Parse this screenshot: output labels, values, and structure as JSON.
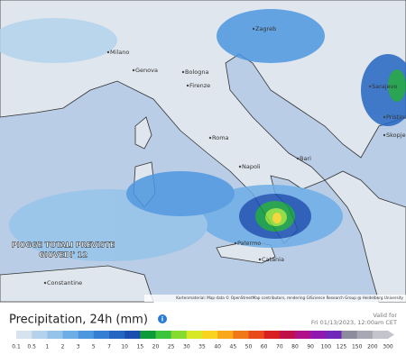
{
  "map": {
    "overlay_title": [
      "PIOGGE TOTALI PREVISTE",
      "GIOVEDI' 12"
    ],
    "cities": [
      "Zagreb",
      "Sarajevo",
      "Pristina",
      "Skopje",
      "Milano",
      "Genova",
      "Bologna",
      "Firenze",
      "Roma",
      "Napoli",
      "Bari",
      "Palermo",
      "Catania",
      "Constantine"
    ],
    "attribution": "Kartenmaterial: Map data © OpenStreetMap contributors, rendering GIScience Research Group @ Heidelberg University"
  },
  "legend": {
    "title": "Precipitation, 24h (mm)",
    "valid": [
      "Valid for",
      "Fri 01/13/2023, 12:00am CET"
    ],
    "labels": [
      "0.1",
      "0.5",
      "1",
      "2",
      "3",
      "5",
      "7",
      "10",
      "15",
      "20",
      "25",
      "30",
      "35",
      "40",
      "45",
      "50",
      "60",
      "70",
      "80",
      "90",
      "100",
      "125",
      "150",
      "200",
      "300"
    ],
    "colors": [
      "#d6e2ee",
      "#b4d2ec",
      "#96c3ea",
      "#6eaee6",
      "#4d97df",
      "#347fd4",
      "#2466c2",
      "#1a4fb0",
      "#0c9a3a",
      "#3cc43c",
      "#86dc2e",
      "#d8e826",
      "#f8d420",
      "#f8a818",
      "#f07818",
      "#e84a18",
      "#d82020",
      "#c0104a",
      "#b0108a",
      "#9018b0",
      "#7028b8",
      "#8c8c9c",
      "#a8a8b4",
      "#c4c4cc"
    ]
  }
}
